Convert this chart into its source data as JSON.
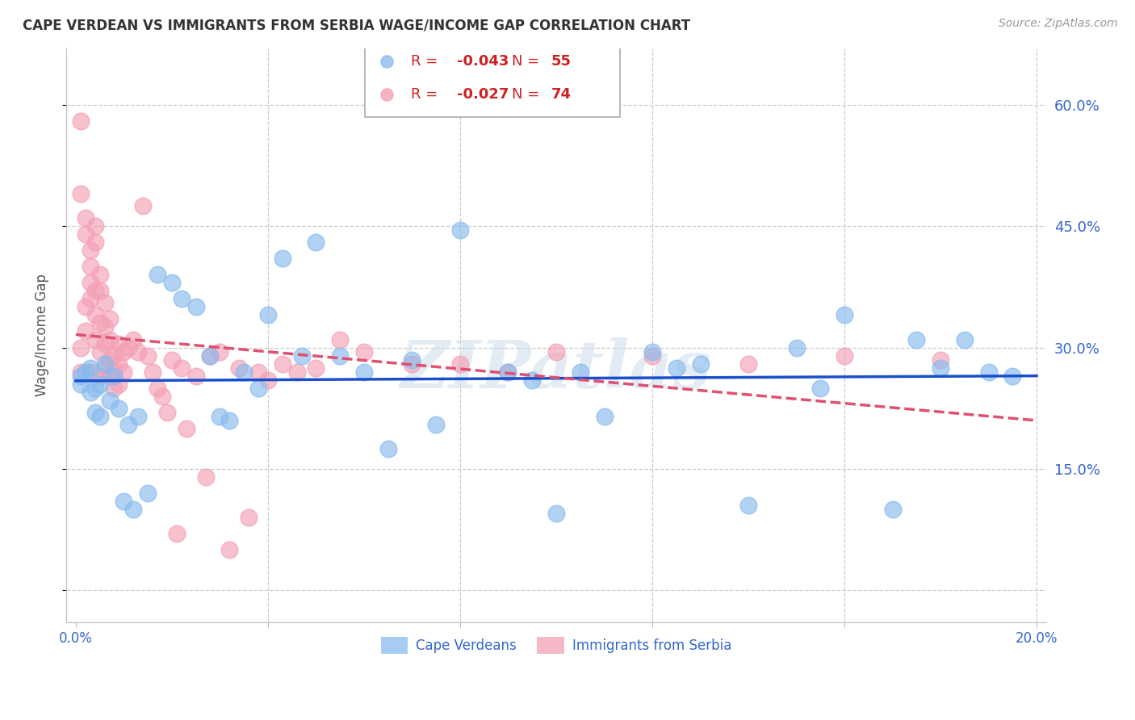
{
  "title": "CAPE VERDEAN VS IMMIGRANTS FROM SERBIA WAGE/INCOME GAP CORRELATION CHART",
  "source": "Source: ZipAtlas.com",
  "ylabel": "Wage/Income Gap",
  "xlim": [
    -0.002,
    0.202
  ],
  "ylim": [
    -0.04,
    0.67
  ],
  "ytick_positions": [
    0.0,
    0.15,
    0.3,
    0.45,
    0.6
  ],
  "ytick_labels": [
    "",
    "15.0%",
    "30.0%",
    "45.0%",
    "60.0%"
  ],
  "grid_color": "#cccccc",
  "background_color": "#ffffff",
  "blue_color": "#88bbee",
  "pink_color": "#f4a0b5",
  "trend_blue": "#1a4fcc",
  "trend_pink": "#e05070",
  "legend_R_blue": "-0.043",
  "legend_N_blue": "55",
  "legend_R_pink": "-0.027",
  "legend_N_pink": "74",
  "legend_label_blue": "Cape Verdeans",
  "legend_label_pink": "Immigrants from Serbia",
  "watermark": "ZIPatlas",
  "blue_points_x": [
    0.001,
    0.001,
    0.002,
    0.003,
    0.003,
    0.004,
    0.004,
    0.005,
    0.005,
    0.006,
    0.007,
    0.008,
    0.009,
    0.01,
    0.011,
    0.012,
    0.013,
    0.015,
    0.017,
    0.02,
    0.022,
    0.025,
    0.028,
    0.03,
    0.032,
    0.035,
    0.038,
    0.04,
    0.043,
    0.047,
    0.05,
    0.055,
    0.06,
    0.065,
    0.07,
    0.075,
    0.08,
    0.09,
    0.095,
    0.1,
    0.105,
    0.11,
    0.12,
    0.125,
    0.13,
    0.14,
    0.15,
    0.155,
    0.16,
    0.17,
    0.175,
    0.18,
    0.185,
    0.19,
    0.195
  ],
  "blue_points_y": [
    0.265,
    0.255,
    0.27,
    0.275,
    0.245,
    0.25,
    0.22,
    0.255,
    0.215,
    0.28,
    0.235,
    0.265,
    0.225,
    0.11,
    0.205,
    0.1,
    0.215,
    0.12,
    0.39,
    0.38,
    0.36,
    0.35,
    0.29,
    0.215,
    0.21,
    0.27,
    0.25,
    0.34,
    0.41,
    0.29,
    0.43,
    0.29,
    0.27,
    0.175,
    0.285,
    0.205,
    0.445,
    0.27,
    0.26,
    0.095,
    0.27,
    0.215,
    0.295,
    0.275,
    0.28,
    0.105,
    0.3,
    0.25,
    0.34,
    0.1,
    0.31,
    0.275,
    0.31,
    0.27,
    0.265
  ],
  "pink_points_x": [
    0.001,
    0.001,
    0.001,
    0.001,
    0.002,
    0.002,
    0.002,
    0.002,
    0.003,
    0.003,
    0.003,
    0.003,
    0.003,
    0.004,
    0.004,
    0.004,
    0.004,
    0.004,
    0.005,
    0.005,
    0.005,
    0.005,
    0.005,
    0.006,
    0.006,
    0.006,
    0.006,
    0.007,
    0.007,
    0.007,
    0.007,
    0.008,
    0.008,
    0.008,
    0.009,
    0.009,
    0.009,
    0.01,
    0.01,
    0.011,
    0.012,
    0.013,
    0.014,
    0.015,
    0.016,
    0.017,
    0.018,
    0.019,
    0.02,
    0.021,
    0.022,
    0.023,
    0.025,
    0.027,
    0.028,
    0.03,
    0.032,
    0.034,
    0.036,
    0.038,
    0.04,
    0.043,
    0.046,
    0.05,
    0.055,
    0.06,
    0.07,
    0.08,
    0.09,
    0.1,
    0.12,
    0.14,
    0.16,
    0.18
  ],
  "pink_points_y": [
    0.58,
    0.27,
    0.49,
    0.3,
    0.46,
    0.44,
    0.35,
    0.32,
    0.42,
    0.4,
    0.38,
    0.36,
    0.27,
    0.45,
    0.43,
    0.37,
    0.34,
    0.31,
    0.39,
    0.37,
    0.33,
    0.295,
    0.265,
    0.355,
    0.325,
    0.305,
    0.275,
    0.335,
    0.31,
    0.285,
    0.265,
    0.29,
    0.27,
    0.25,
    0.305,
    0.28,
    0.255,
    0.295,
    0.27,
    0.3,
    0.31,
    0.295,
    0.475,
    0.29,
    0.27,
    0.25,
    0.24,
    0.22,
    0.285,
    0.07,
    0.275,
    0.2,
    0.265,
    0.14,
    0.29,
    0.295,
    0.05,
    0.275,
    0.09,
    0.27,
    0.26,
    0.28,
    0.27,
    0.275,
    0.31,
    0.295,
    0.28,
    0.28,
    0.27,
    0.295,
    0.29,
    0.28,
    0.29,
    0.285
  ]
}
